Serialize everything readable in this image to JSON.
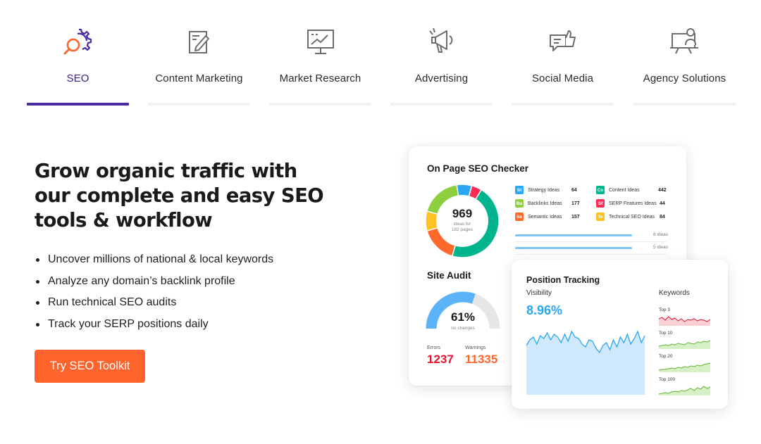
{
  "tabs": [
    {
      "label": "SEO",
      "icon": "seo-magnifier-gear-icon",
      "active": true
    },
    {
      "label": "Content Marketing",
      "icon": "document-edit-icon",
      "active": false
    },
    {
      "label": "Market Research",
      "icon": "monitor-chart-icon",
      "active": false
    },
    {
      "label": "Advertising",
      "icon": "megaphone-icon",
      "active": false
    },
    {
      "label": "Social Media",
      "icon": "chat-thumbs-up-icon",
      "active": false
    },
    {
      "label": "Agency Solutions",
      "icon": "presenter-board-icon",
      "active": false
    }
  ],
  "hero": {
    "headline_lines": [
      "Grow organic traffic with",
      "our complete and easy SEO",
      "tools & workflow"
    ],
    "bullets": [
      "Uncover millions of national & local keywords",
      "Analyze any domain’s backlink profile",
      "Run technical SEO audits",
      "Track your SERP positions daily"
    ],
    "cta": "Try SEO Toolkit"
  },
  "on_page": {
    "title": "On Page SEO Checker",
    "total": "969",
    "total_caption_1": "ideas for",
    "total_caption_2": "182 pages",
    "ideas": [
      {
        "abbr": "St",
        "label": "Strategy Ideas",
        "value": "64",
        "color": "#2aa7f2"
      },
      {
        "abbr": "Ba",
        "label": "Backlinks Ideas",
        "value": "177",
        "color": "#8dcf3f"
      },
      {
        "abbr": "Se",
        "label": "Semantic Ideas",
        "value": "157",
        "color": "#ff6a2c"
      },
      {
        "abbr": "Co",
        "label": "Content Ideas",
        "value": "442",
        "color": "#00b58e"
      },
      {
        "abbr": "Sf",
        "label": "SERP Features Ideas",
        "value": "44",
        "color": "#ff2d55"
      },
      {
        "abbr": "Te",
        "label": "Technical SEO Ideas",
        "value": "84",
        "color": "#ffc123"
      }
    ],
    "bar_rows": [
      "8 ideas",
      "5 ideas"
    ],
    "colors": {
      "green": "#00b58e",
      "orange": "#ff6a2c",
      "yellow": "#ffc123",
      "lime": "#8dcf3f",
      "blue": "#2aa7f2",
      "red": "#ff2d55"
    }
  },
  "site_audit": {
    "title": "Site Audit",
    "score": "61%",
    "score_caption": "no changes",
    "errors_label": "Errors",
    "errors_value": "1237",
    "warnings_label": "Warnings",
    "warnings_value": "11335",
    "score_fraction": 0.61,
    "colors": {
      "gauge": "#5ab4f7",
      "track": "#e6e6e6",
      "errors": "#e8102c",
      "warnings": "#ff642d"
    }
  },
  "position_tracking": {
    "title": "Position Tracking",
    "visibility_label": "Visibility",
    "visibility_value": "8.96%",
    "keywords_label": "Keywords",
    "keyword_groups": [
      "Top 3",
      "Top 10",
      "Top 20",
      "Top 100"
    ],
    "colors": {
      "visibility": "#2aa7f2",
      "top3": "#e8102c",
      "others": "#5fb533"
    }
  },
  "brand": {
    "accent": "#ff642d",
    "tab_active": "#4b2ba0"
  }
}
